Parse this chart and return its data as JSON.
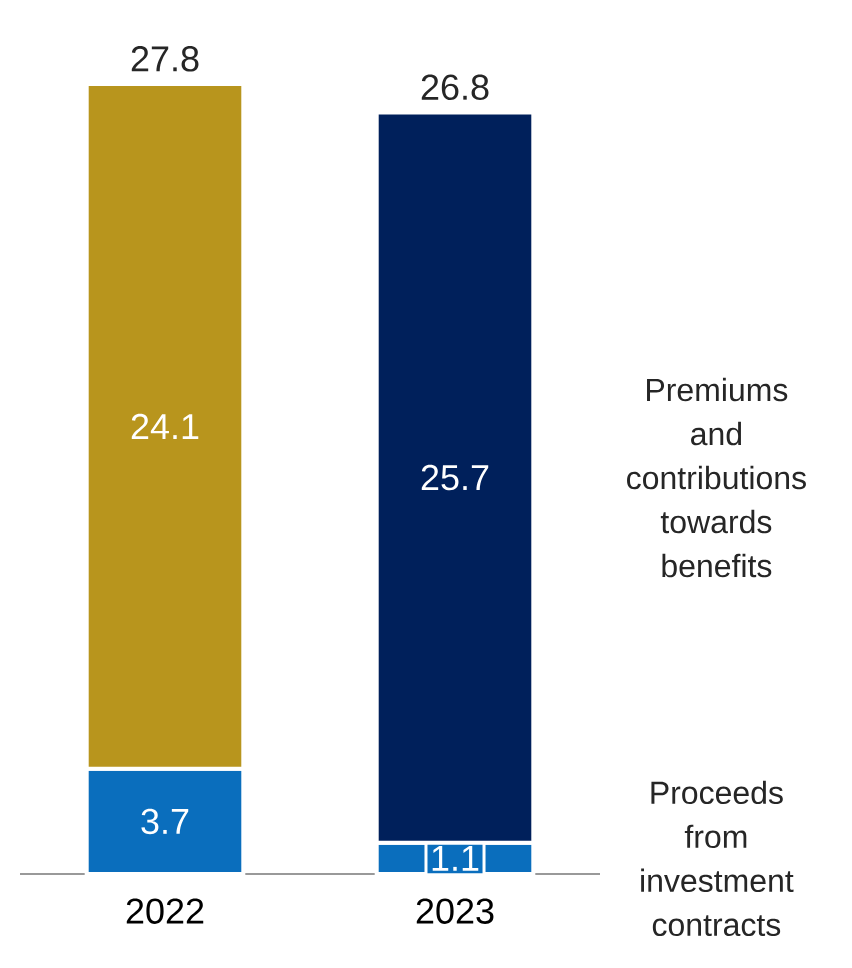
{
  "chart_data": {
    "type": "bar",
    "stacked": true,
    "categories": [
      "2022",
      "2023"
    ],
    "series": [
      {
        "name": "Proceeds from investment contracts",
        "colors": [
          "#0a6ebd",
          "#0a6ebd"
        ],
        "values": [
          3.7,
          1.1
        ]
      },
      {
        "name": "Premiums and contributions towards benefits",
        "colors": [
          "#b8951d",
          "#00205b"
        ],
        "values": [
          24.1,
          25.7
        ]
      }
    ],
    "data_labels": true,
    "totals": [
      "27.8",
      "26.8"
    ]
  }
}
